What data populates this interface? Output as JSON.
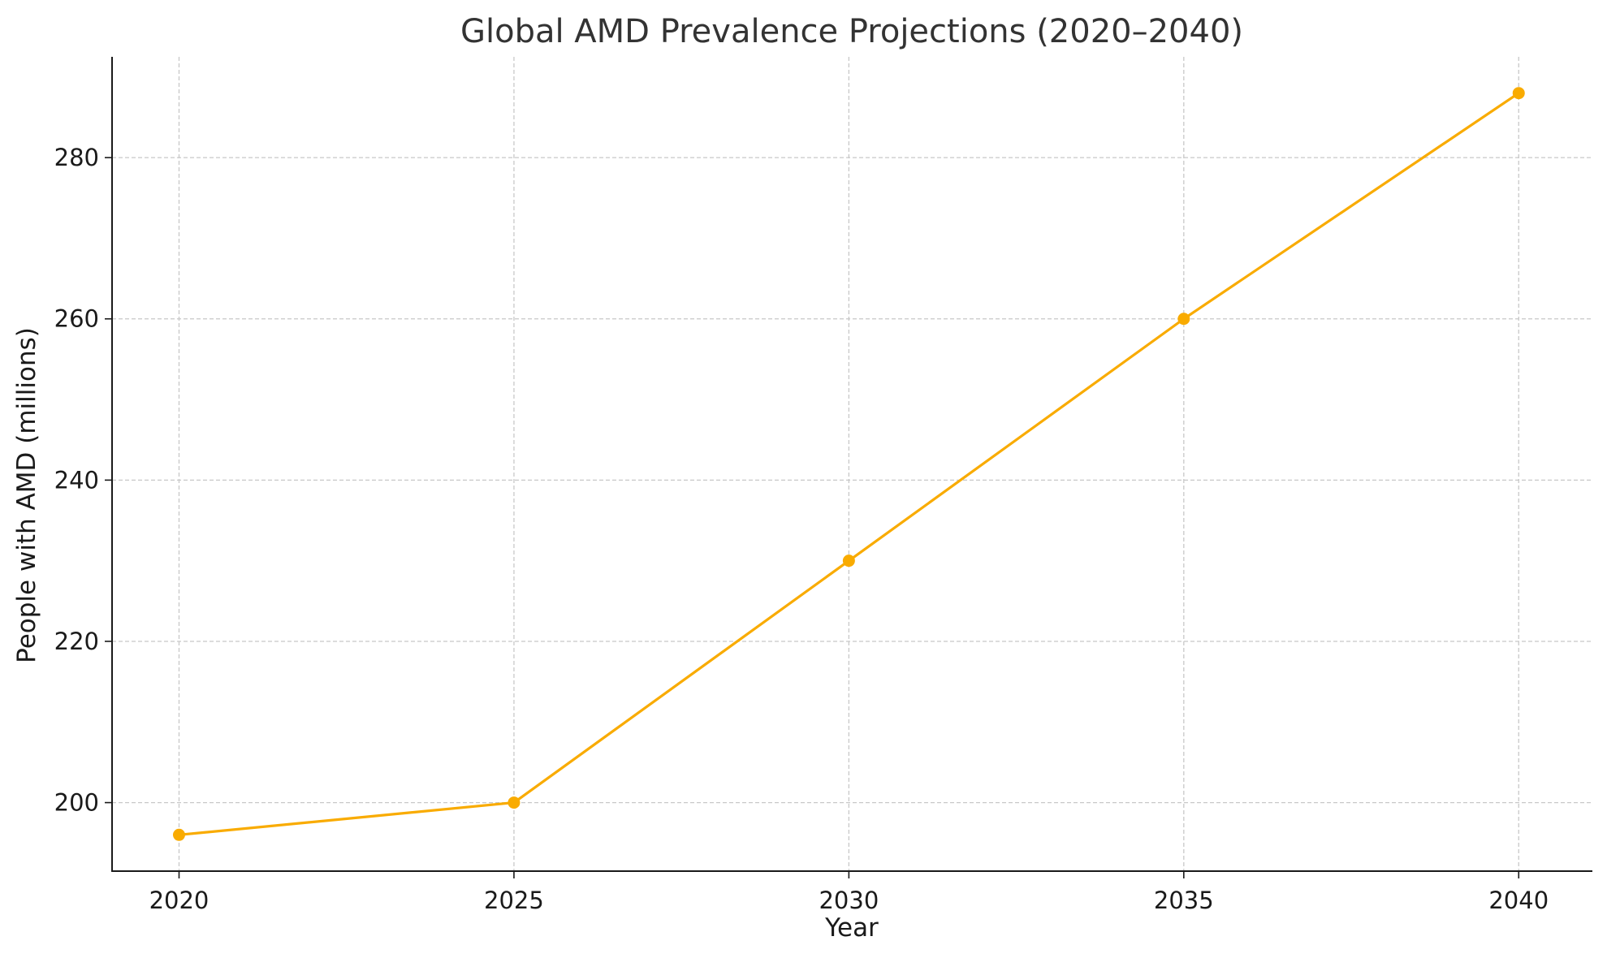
{
  "chart_data": {
    "type": "line",
    "title": "Global AMD Prevalence Projections (2020–2040)",
    "xlabel": "Year",
    "ylabel": "People with AMD (millions)",
    "x": [
      2020,
      2025,
      2030,
      2035,
      2040
    ],
    "x_ticks": [
      "2020",
      "2025",
      "2030",
      "2035",
      "2040"
    ],
    "y_ticks": [
      "200",
      "220",
      "240",
      "260",
      "280"
    ],
    "xlim": [
      2019,
      2041.1
    ],
    "ylim": [
      191.5,
      292.5
    ],
    "grid": true,
    "series": [
      {
        "values": [
          196,
          200,
          230,
          260,
          288
        ],
        "color": "#f9ab00",
        "marker": "circle"
      }
    ]
  }
}
